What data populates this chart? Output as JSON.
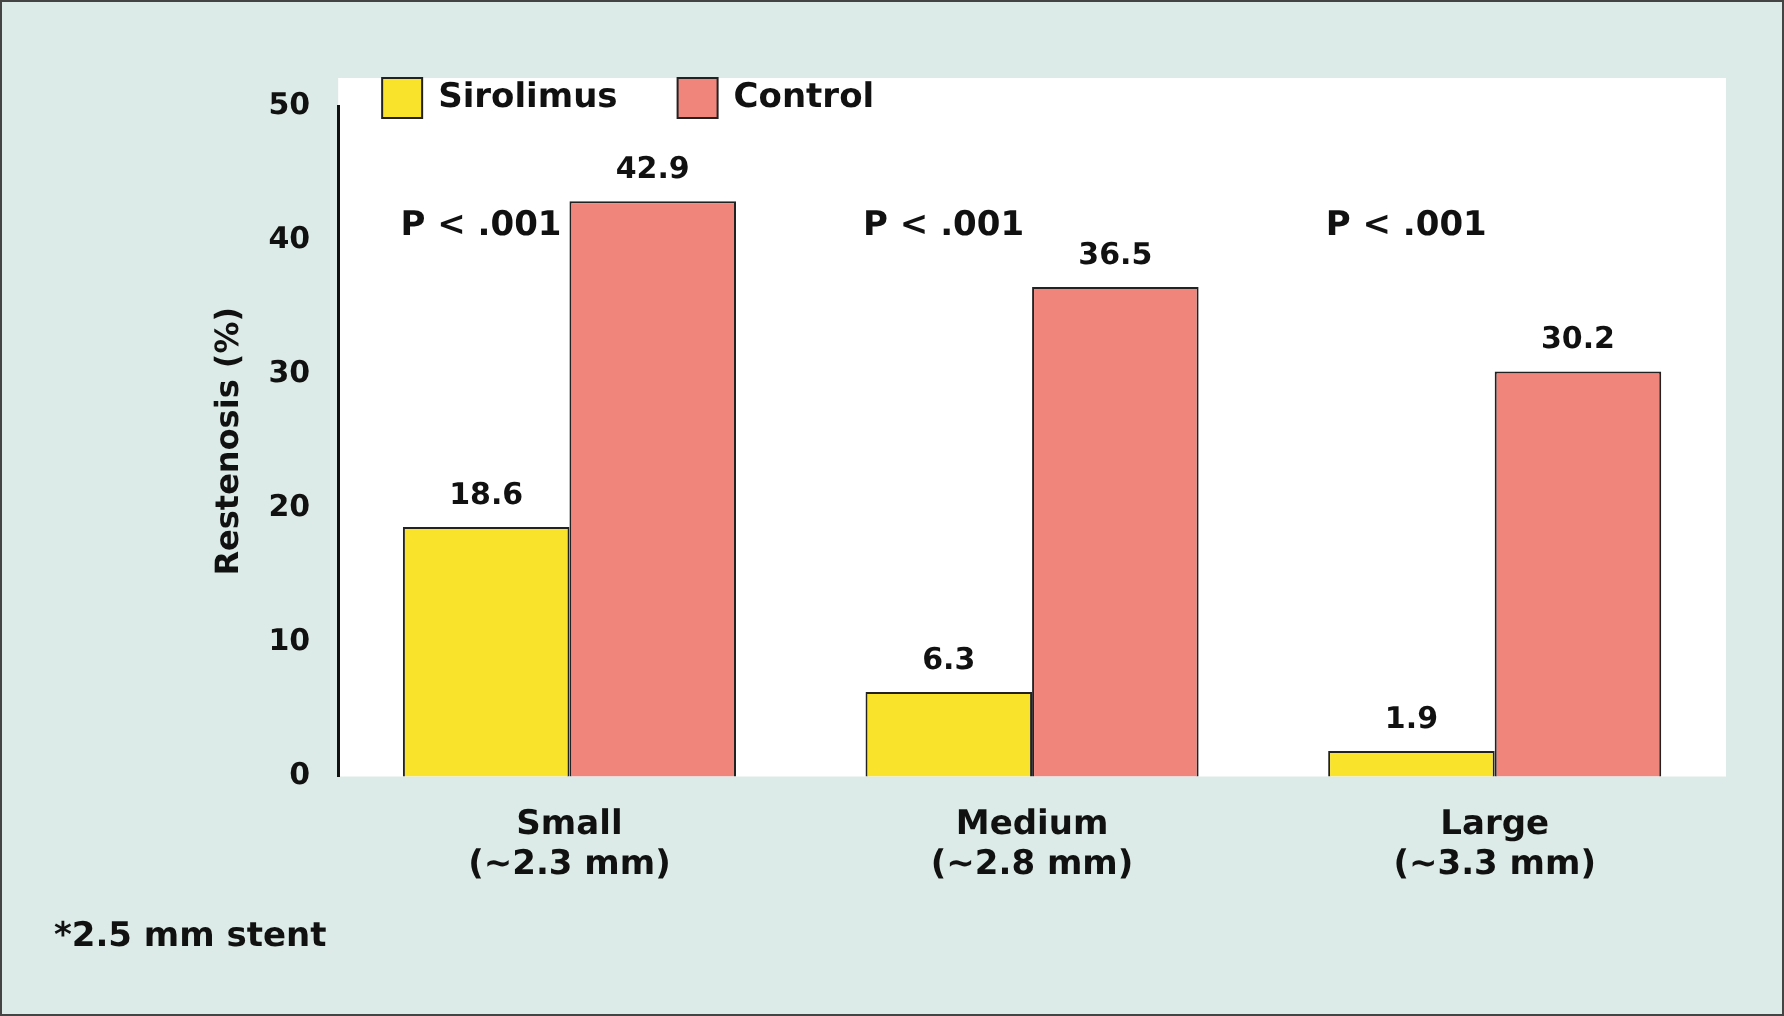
{
  "chart_data": {
    "type": "bar",
    "categories": [
      "Small\n(~2.3 mm)",
      "Medium\n(~2.8 mm)",
      "Large\n(~3.3 mm)"
    ],
    "series": [
      {
        "name": "Sirolimus",
        "color": "#f9e42b",
        "values": [
          18.6,
          6.3,
          1.9
        ]
      },
      {
        "name": "Control",
        "color": "#f0857c",
        "values": [
          42.9,
          36.5,
          30.2
        ]
      }
    ],
    "ylabel": "Restenosis (%)",
    "ylim": [
      0,
      50
    ],
    "yticks": [
      0,
      10,
      20,
      30,
      40,
      50
    ],
    "grid": false,
    "legend": "top left",
    "data_labels": true,
    "annotations": [
      "P < .001",
      "P < .001",
      "P < .001",
      "*2.5 mm stent"
    ]
  }
}
